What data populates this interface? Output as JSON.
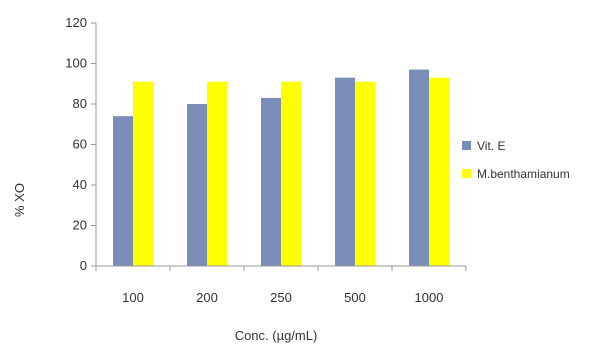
{
  "chart_data": {
    "type": "bar",
    "title": "",
    "xlabel": "Conc. (µg/mL)",
    "ylabel": "% XO",
    "categories": [
      "100",
      "200",
      "250",
      "500",
      "1000"
    ],
    "series": [
      {
        "name": "Vit. E",
        "color": "#7a8db8",
        "values": [
          74,
          80,
          83,
          93,
          97
        ]
      },
      {
        "name": "M.benthamianum",
        "color": "#ffff00",
        "values": [
          91,
          91,
          91,
          91,
          93
        ]
      }
    ],
    "ylim": [
      0,
      120
    ],
    "yticks": [
      0,
      20,
      40,
      60,
      80,
      100,
      120
    ],
    "grid": false,
    "legend_position": "right"
  }
}
